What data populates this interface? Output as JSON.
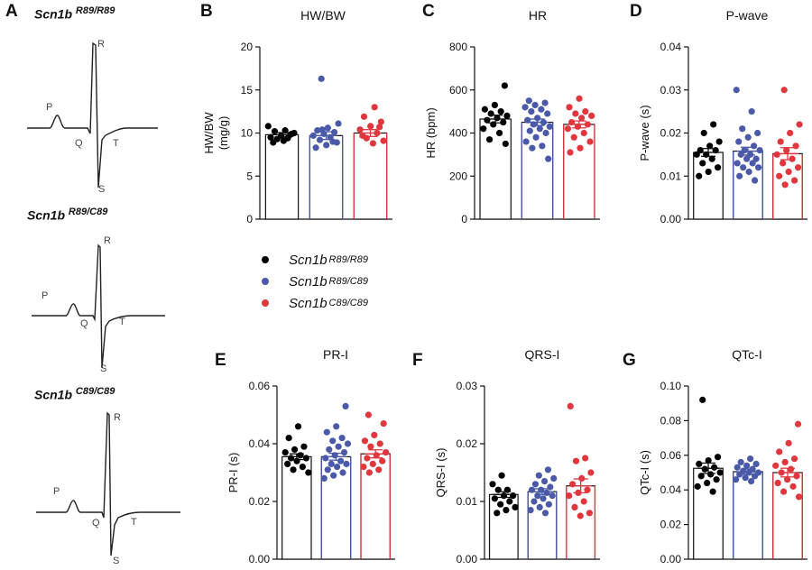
{
  "panel_letters": [
    "A",
    "B",
    "C",
    "D",
    "E",
    "F",
    "G"
  ],
  "ecg_traces": [
    {
      "genotype": "Scn1b",
      "superscript": "R89/R89",
      "waves": [
        "P",
        "Q",
        "R",
        "S",
        "T"
      ]
    },
    {
      "genotype": "Scn1b",
      "superscript": "R89/C89",
      "waves": [
        "P",
        "Q",
        "R",
        "S",
        "T"
      ]
    },
    {
      "genotype": "Scn1b",
      "superscript": "C89/C89",
      "waves": [
        "P",
        "Q",
        "R",
        "S",
        "T"
      ]
    }
  ],
  "legend": [
    {
      "genotype": "Scn1b",
      "superscript": "R89/R89",
      "color": "#000000"
    },
    {
      "genotype": "Scn1b",
      "superscript": "R89/C89",
      "color": "#4a5aa8"
    },
    {
      "genotype": "Scn1b",
      "superscript": "C89/C89",
      "color": "#e0373f"
    }
  ],
  "colors": {
    "group1": "#000000",
    "group2": "#4a5aa8",
    "group3": "#e0373f"
  },
  "chart_data": [
    {
      "id": "B",
      "type": "bar",
      "title": "HW/BW",
      "ylabel": [
        "HW/BW",
        "(mg/g)"
      ],
      "ylim": [
        0,
        20
      ],
      "yticks": [
        0,
        5,
        10,
        15,
        20
      ],
      "yticklabels": [
        "0",
        "5",
        "10",
        "15",
        "20"
      ],
      "means": [
        9.8,
        9.7,
        10.0
      ],
      "sem": [
        0.25,
        0.45,
        0.4
      ],
      "points": [
        [
          10.8,
          10.3,
          10.2,
          9.9,
          9.7,
          9.5,
          9.4,
          9.3,
          10.0,
          9.1,
          8.9,
          9.8
        ],
        [
          16.3,
          11.1,
          10.6,
          10.3,
          10.1,
          9.9,
          9.7,
          9.5,
          9.2,
          8.9,
          8.6,
          8.3,
          9.0,
          10.4
        ],
        [
          13.0,
          11.9,
          11.3,
          10.8,
          10.4,
          10.0,
          9.4,
          9.1,
          8.8,
          9.7,
          10.7
        ]
      ]
    },
    {
      "id": "C",
      "type": "bar",
      "title": "HR",
      "ylabel": [
        "HR (bpm)"
      ],
      "ylim": [
        0,
        800
      ],
      "yticks": [
        0,
        200,
        400,
        600,
        800
      ],
      "yticklabels": [
        "0",
        "200",
        "400",
        "600",
        "800"
      ],
      "means": [
        465,
        450,
        440
      ],
      "sem": [
        18,
        15,
        16
      ],
      "points": [
        [
          620,
          530,
          510,
          500,
          490,
          480,
          470,
          460,
          450,
          440,
          420,
          400,
          370,
          350
        ],
        [
          550,
          540,
          530,
          520,
          510,
          500,
          490,
          470,
          460,
          450,
          440,
          430,
          420,
          410,
          400,
          380,
          360,
          340,
          330,
          280
        ],
        [
          560,
          520,
          500,
          490,
          480,
          470,
          450,
          440,
          430,
          420,
          400,
          380,
          360,
          330,
          310
        ]
      ]
    },
    {
      "id": "D",
      "type": "bar",
      "title": "P-wave",
      "ylabel": [
        "P-wave (s)"
      ],
      "ylim": [
        0,
        0.04
      ],
      "yticks": [
        0,
        0.01,
        0.02,
        0.03,
        0.04
      ],
      "yticklabels": [
        "0.00",
        "0.01",
        "0.02",
        "0.03",
        "0.04"
      ],
      "means": [
        0.0155,
        0.0158,
        0.0152
      ],
      "sem": [
        0.0009,
        0.0009,
        0.0014
      ],
      "points": [
        [
          0.022,
          0.02,
          0.018,
          0.017,
          0.016,
          0.016,
          0.015,
          0.015,
          0.014,
          0.013,
          0.012,
          0.011,
          0.01
        ],
        [
          0.03,
          0.025,
          0.021,
          0.02,
          0.019,
          0.018,
          0.017,
          0.016,
          0.016,
          0.015,
          0.015,
          0.014,
          0.014,
          0.013,
          0.013,
          0.012,
          0.012,
          0.011,
          0.01,
          0.009
        ],
        [
          0.03,
          0.022,
          0.02,
          0.018,
          0.017,
          0.016,
          0.015,
          0.014,
          0.013,
          0.012,
          0.011,
          0.01,
          0.009,
          0.008
        ]
      ]
    },
    {
      "id": "E",
      "type": "bar",
      "title": "PR-I",
      "ylabel": [
        "PR-I (s)"
      ],
      "ylim": [
        0,
        0.06
      ],
      "yticks": [
        0,
        0.02,
        0.04,
        0.06
      ],
      "yticklabels": [
        "0.00",
        "0.02",
        "0.04",
        "0.06"
      ],
      "means": [
        0.0355,
        0.0355,
        0.0365
      ],
      "sem": [
        0.001,
        0.0012,
        0.0014
      ],
      "points": [
        [
          0.046,
          0.042,
          0.039,
          0.038,
          0.037,
          0.036,
          0.035,
          0.035,
          0.034,
          0.033,
          0.032,
          0.031,
          0.03
        ],
        [
          0.053,
          0.046,
          0.044,
          0.042,
          0.041,
          0.04,
          0.039,
          0.038,
          0.037,
          0.036,
          0.035,
          0.034,
          0.033,
          0.033,
          0.032,
          0.031,
          0.03,
          0.029,
          0.028
        ],
        [
          0.05,
          0.047,
          0.043,
          0.041,
          0.04,
          0.039,
          0.037,
          0.036,
          0.035,
          0.034,
          0.033,
          0.032,
          0.031,
          0.03
        ]
      ]
    },
    {
      "id": "F",
      "type": "bar",
      "title": "QRS-I",
      "ylabel": [
        "QRS-I (s)"
      ],
      "ylim": [
        0,
        0.03
      ],
      "yticks": [
        0,
        0.01,
        0.02,
        0.03
      ],
      "yticklabels": [
        "0.00",
        "0.01",
        "0.02",
        "0.03"
      ],
      "means": [
        0.0112,
        0.0117,
        0.0127
      ],
      "sem": [
        0.0005,
        0.0005,
        0.0012
      ],
      "points": [
        [
          0.0145,
          0.013,
          0.012,
          0.012,
          0.011,
          0.011,
          0.0105,
          0.01,
          0.0095,
          0.009,
          0.0085,
          0.008
        ],
        [
          0.0155,
          0.0145,
          0.014,
          0.0135,
          0.013,
          0.0125,
          0.012,
          0.012,
          0.0115,
          0.011,
          0.011,
          0.0105,
          0.01,
          0.0095,
          0.009,
          0.0085,
          0.008
        ],
        [
          0.0265,
          0.0175,
          0.017,
          0.015,
          0.014,
          0.013,
          0.012,
          0.0115,
          0.011,
          0.01,
          0.009,
          0.008,
          0.0075
        ]
      ]
    },
    {
      "id": "G",
      "type": "bar",
      "title": "QTc-I",
      "ylabel": [
        "QTc-I (s)"
      ],
      "ylim": [
        0,
        0.1
      ],
      "yticks": [
        0,
        0.02,
        0.04,
        0.06,
        0.08,
        0.1
      ],
      "yticklabels": [
        "0.00",
        "0.02",
        "0.04",
        "0.06",
        "0.08",
        "0.10"
      ],
      "means": [
        0.0525,
        0.0505,
        0.05
      ],
      "sem": [
        0.003,
        0.0015,
        0.0025
      ],
      "points": [
        [
          0.092,
          0.059,
          0.057,
          0.055,
          0.053,
          0.052,
          0.05,
          0.049,
          0.048,
          0.046,
          0.044,
          0.042,
          0.039
        ],
        [
          0.058,
          0.056,
          0.055,
          0.054,
          0.053,
          0.052,
          0.051,
          0.05,
          0.05,
          0.049,
          0.048,
          0.047,
          0.046,
          0.045
        ],
        [
          0.078,
          0.067,
          0.062,
          0.058,
          0.056,
          0.054,
          0.052,
          0.05,
          0.048,
          0.046,
          0.044,
          0.042,
          0.039,
          0.036
        ]
      ]
    }
  ]
}
